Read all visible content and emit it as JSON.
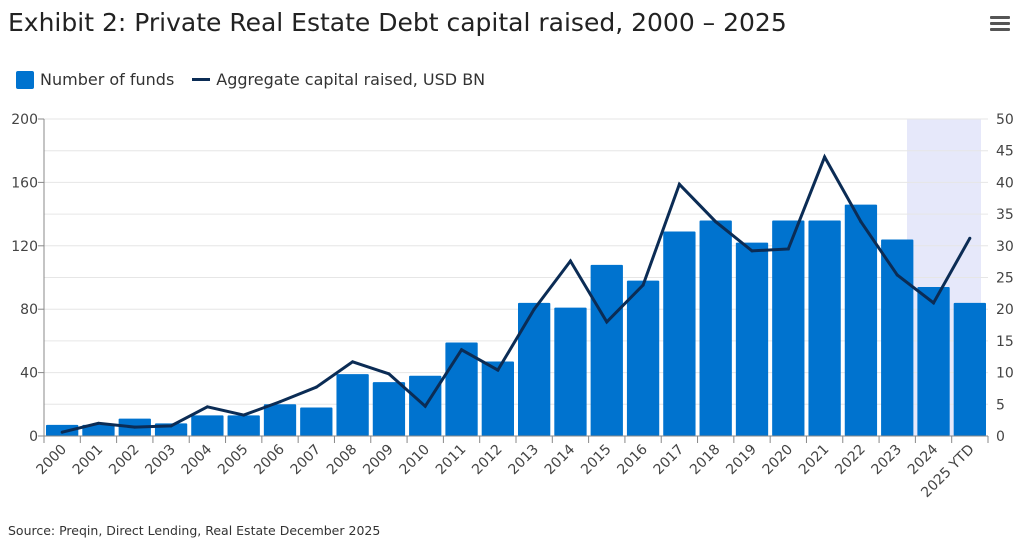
{
  "title": "Exhibit 2: Private Real Estate Debt capital raised, 2000 – 2025",
  "menu_icon": "hamburger-menu-icon",
  "source": "Source: Preqin, Direct Lending, Real Estate December 2025",
  "chart_data": {
    "type": "bar+line",
    "categories": [
      "2000",
      "2001",
      "2002",
      "2003",
      "2004",
      "2005",
      "2006",
      "2007",
      "2008",
      "2009",
      "2010",
      "2011",
      "2012",
      "2013",
      "2014",
      "2015",
      "2016",
      "2017",
      "2018",
      "2019",
      "2020",
      "2021",
      "2022",
      "2023",
      "2024",
      "2025 YTD"
    ],
    "series": [
      {
        "name": "Number of funds",
        "type": "bar",
        "axis": "left",
        "color": "#0073cf",
        "values": [
          7,
          7,
          11,
          8,
          13,
          13,
          20,
          18,
          39,
          34,
          38,
          59,
          47,
          84,
          81,
          108,
          98,
          129,
          136,
          122,
          136,
          136,
          146,
          124,
          94,
          84
        ]
      },
      {
        "name": "Aggregate capital raised, USD BN",
        "type": "line",
        "axis": "right",
        "color": "#0b2c55",
        "values": [
          0.6,
          2.0,
          1.4,
          1.6,
          4.6,
          3.3,
          5.4,
          7.7,
          11.7,
          9.8,
          4.7,
          13.6,
          10.4,
          20.0,
          27.6,
          18.0,
          23.8,
          39.7,
          33.8,
          29.2,
          29.5,
          44.0,
          33.8,
          25.4,
          21.0,
          31.2
        ]
      }
    ],
    "y_left": {
      "range": [
        0,
        200
      ],
      "ticks": [
        "0",
        "40",
        "80",
        "120",
        "160",
        "200"
      ]
    },
    "y_right": {
      "range": [
        0,
        50
      ],
      "ticks": [
        "0",
        "5",
        "10",
        "15",
        "20",
        "25",
        "30",
        "35",
        "40",
        "45",
        "50"
      ]
    },
    "grid": true,
    "highlight_color": "#e6e8fa",
    "legend_position": "top-left"
  }
}
